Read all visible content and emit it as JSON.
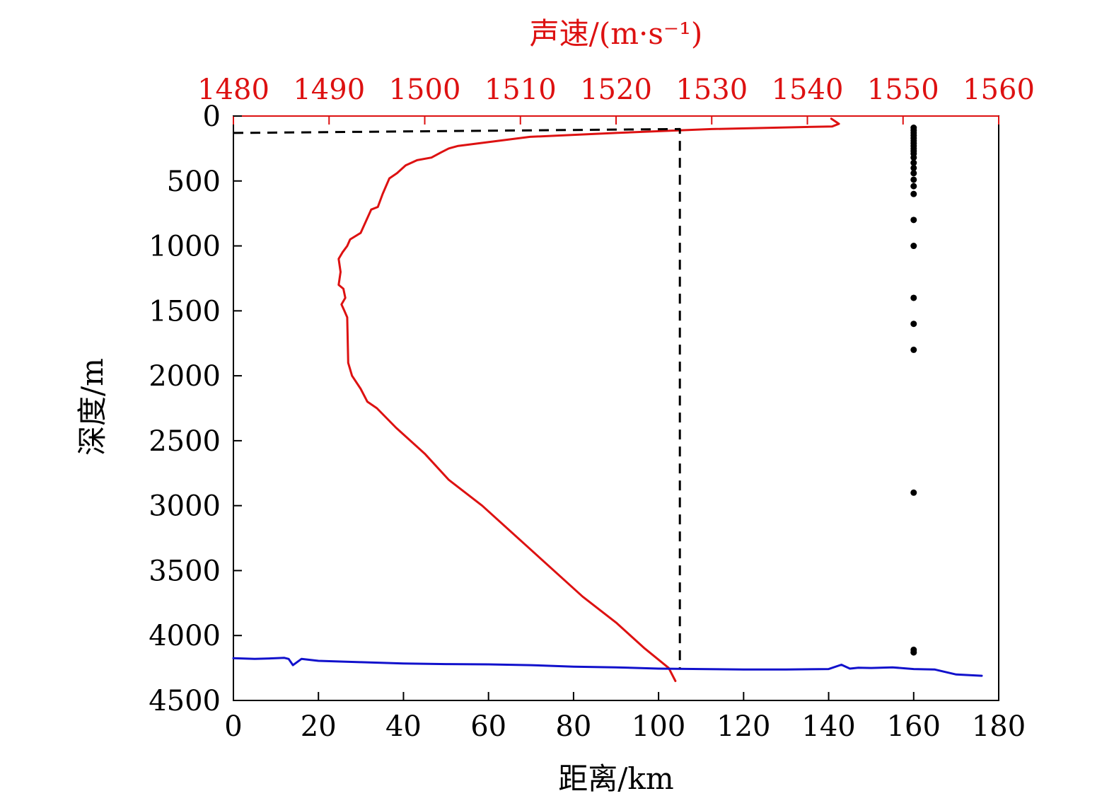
{
  "chart_data": {
    "type": "line",
    "colors": {
      "sound_speed": "#dd1111",
      "bathymetry": "#1111cc",
      "reference": "#000000",
      "frame": "#000000",
      "top_axis": "#dd1111"
    },
    "axes": {
      "x_bottom": {
        "label": "距离/km",
        "range": [
          0,
          180
        ],
        "ticks": [
          0,
          20,
          40,
          60,
          80,
          100,
          120,
          140,
          160,
          180
        ],
        "tick_labels": [
          "0",
          "20",
          "40",
          "60",
          "80",
          "100",
          "120",
          "140",
          "160",
          "180"
        ]
      },
      "x_top": {
        "label": "声速/(m·s⁻¹)",
        "range": [
          1480,
          1560
        ],
        "ticks": [
          1480,
          1490,
          1500,
          1510,
          1520,
          1530,
          1540,
          1550,
          1560
        ],
        "tick_labels": [
          "1480",
          "1490",
          "1500",
          "1510",
          "1520",
          "1530",
          "1540",
          "1550",
          "1560"
        ]
      },
      "y": {
        "label": "深度/m",
        "range": [
          0,
          4500
        ],
        "inverted": true,
        "ticks": [
          0,
          500,
          1000,
          1500,
          2000,
          2500,
          3000,
          3500,
          4000,
          4500
        ],
        "tick_labels": [
          "0",
          "500",
          "1000",
          "1500",
          "2000",
          "2500",
          "3000",
          "3500",
          "4000",
          "4500"
        ]
      }
    },
    "series": [
      {
        "type": "line",
        "axis": "top",
        "x": [
          1542.5,
          1543.3,
          1542.6,
          1530,
          1520,
          1511,
          1503.5,
          1502.5,
          1501.7,
          1500.7,
          1499.2,
          1498.0,
          1497.1,
          1496.3,
          1495.6,
          1495.1,
          1494.4,
          1493.3,
          1492.2,
          1491.9,
          1491.4,
          1491.0,
          1491.2,
          1491.0,
          1491.5,
          1491.7,
          1491.3,
          1491.6,
          1491.9,
          1492.0,
          1492.4,
          1493.3,
          1494.0,
          1495.0,
          1497.0,
          1500.0,
          1502.5,
          1506.0,
          1510.5,
          1516.5,
          1520.0,
          1523.0,
          1525.5,
          1526.2
        ],
        "y": [
          20,
          60,
          80,
          100,
          130,
          160,
          230,
          250,
          280,
          320,
          340,
          380,
          440,
          480,
          600,
          700,
          720,
          900,
          950,
          1000,
          1050,
          1100,
          1200,
          1300,
          1330,
          1400,
          1450,
          1500,
          1550,
          1900,
          2000,
          2100,
          2200,
          2250,
          2400,
          2600,
          2800,
          3000,
          3300,
          3700,
          3900,
          4100,
          4250,
          4350
        ]
      },
      {
        "type": "line",
        "axis": "bottom",
        "x": [
          0,
          5,
          10,
          12,
          13,
          14,
          16,
          20,
          30,
          40,
          50,
          60,
          70,
          80,
          90,
          100,
          110,
          120,
          130,
          140,
          143,
          145,
          147,
          150,
          155,
          160,
          165,
          170,
          176
        ],
        "y": [
          4175,
          4180,
          4175,
          4172,
          4180,
          4228,
          4180,
          4195,
          4205,
          4215,
          4220,
          4222,
          4228,
          4240,
          4245,
          4255,
          4258,
          4262,
          4262,
          4258,
          4225,
          4255,
          4248,
          4250,
          4245,
          4258,
          4262,
          4300,
          4310
        ]
      },
      {
        "type": "dashed",
        "axis": "bottom",
        "x": [
          0,
          105,
          105
        ],
        "y": [
          130,
          100,
          4250
        ]
      },
      {
        "type": "scatter",
        "axis": "bottom",
        "x": [
          160,
          160,
          160,
          160,
          160,
          160,
          160,
          160,
          160,
          160,
          160,
          160,
          160,
          160,
          160,
          160,
          160,
          160,
          160,
          160,
          160,
          160,
          160,
          160,
          160,
          160
        ],
        "y": [
          90,
          110,
          130,
          150,
          170,
          190,
          210,
          230,
          250,
          270,
          290,
          320,
          360,
          400,
          440,
          490,
          540,
          600,
          800,
          1000,
          1400,
          1600,
          1800,
          2900,
          4110,
          4130
        ]
      }
    ]
  }
}
